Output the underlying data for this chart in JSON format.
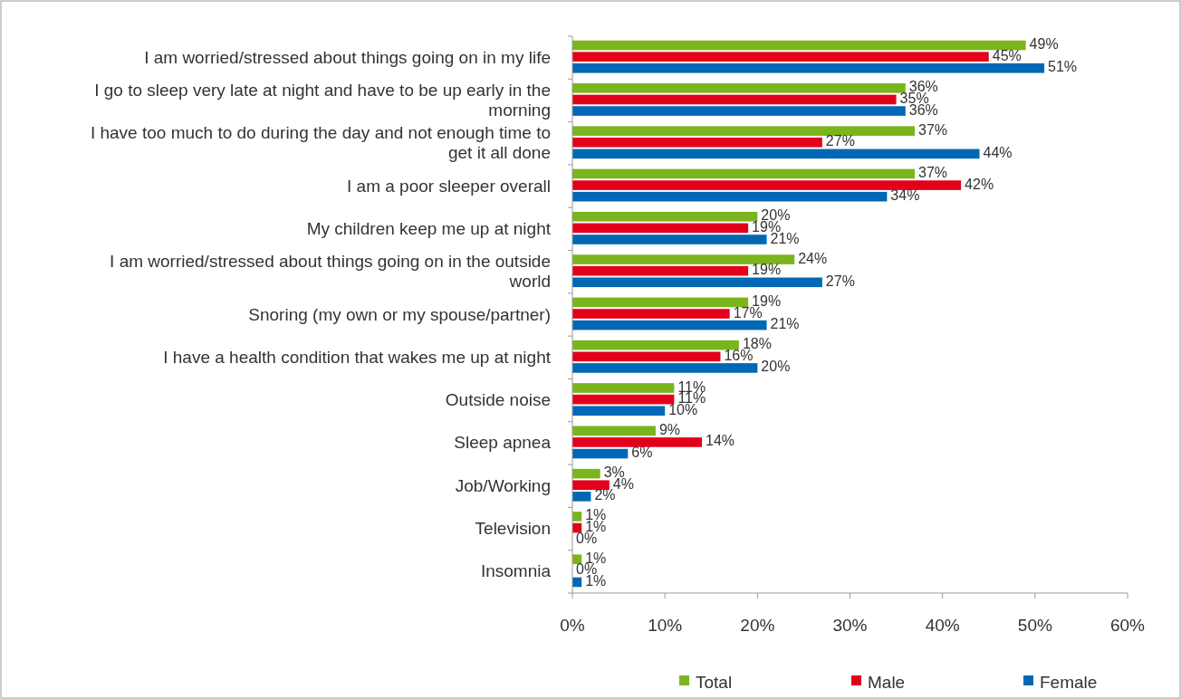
{
  "chart_data": {
    "type": "bar",
    "orientation": "horizontal",
    "categories": [
      "I am worried/stressed about things going on in my life",
      "I go to sleep very late at night and have to be up early in the morning",
      "I have too much to do during the day and not enough time to get it all done",
      "I am a poor sleeper overall",
      "My children keep me up at night",
      "I am worried/stressed about things going on in the outside world",
      "Snoring (my own or my spouse/partner)",
      "I have a health condition that wakes me up at night",
      "Outside noise",
      "Sleep apnea",
      "Job/Working",
      "Television",
      "Insomnia"
    ],
    "series": [
      {
        "name": "Total",
        "color": "#7ab51d",
        "values": [
          49,
          36,
          37,
          37,
          20,
          24,
          19,
          18,
          11,
          9,
          3,
          1,
          1
        ],
        "value_labels": [
          "49%",
          "36%",
          "37%",
          "37%",
          "20%",
          "24%",
          "19%",
          "18%",
          "11%",
          "9%",
          "3%",
          "1%",
          "1%"
        ]
      },
      {
        "name": "Male",
        "color": "#e3001b",
        "values": [
          45,
          35,
          27,
          42,
          19,
          19,
          17,
          16,
          11,
          14,
          4,
          1,
          0
        ],
        "value_labels": [
          "45%",
          "35%",
          "27%",
          "42%",
          "19%",
          "19%",
          "17%",
          "16%",
          "11%",
          "14%",
          "4%",
          "1%",
          "0%"
        ]
      },
      {
        "name": "Female",
        "color": "#0068b4",
        "values": [
          51,
          36,
          44,
          34,
          21,
          27,
          21,
          20,
          10,
          6,
          2,
          0,
          1
        ],
        "value_labels": [
          "51%",
          "36%",
          "44%",
          "34%",
          "21%",
          "27%",
          "21%",
          "20%",
          "10%",
          "6%",
          "2%",
          "0%",
          "1%"
        ]
      }
    ],
    "xlim": [
      0,
      60
    ],
    "xticks": [
      {
        "value": 0,
        "label": "0%"
      },
      {
        "value": 10,
        "label": "10%"
      },
      {
        "value": 20,
        "label": "20%"
      },
      {
        "value": 30,
        "label": "30%"
      },
      {
        "value": 40,
        "label": "40%"
      },
      {
        "value": 50,
        "label": "50%"
      },
      {
        "value": 60,
        "label": "60%"
      }
    ],
    "grid": false,
    "legend": "bottom"
  }
}
